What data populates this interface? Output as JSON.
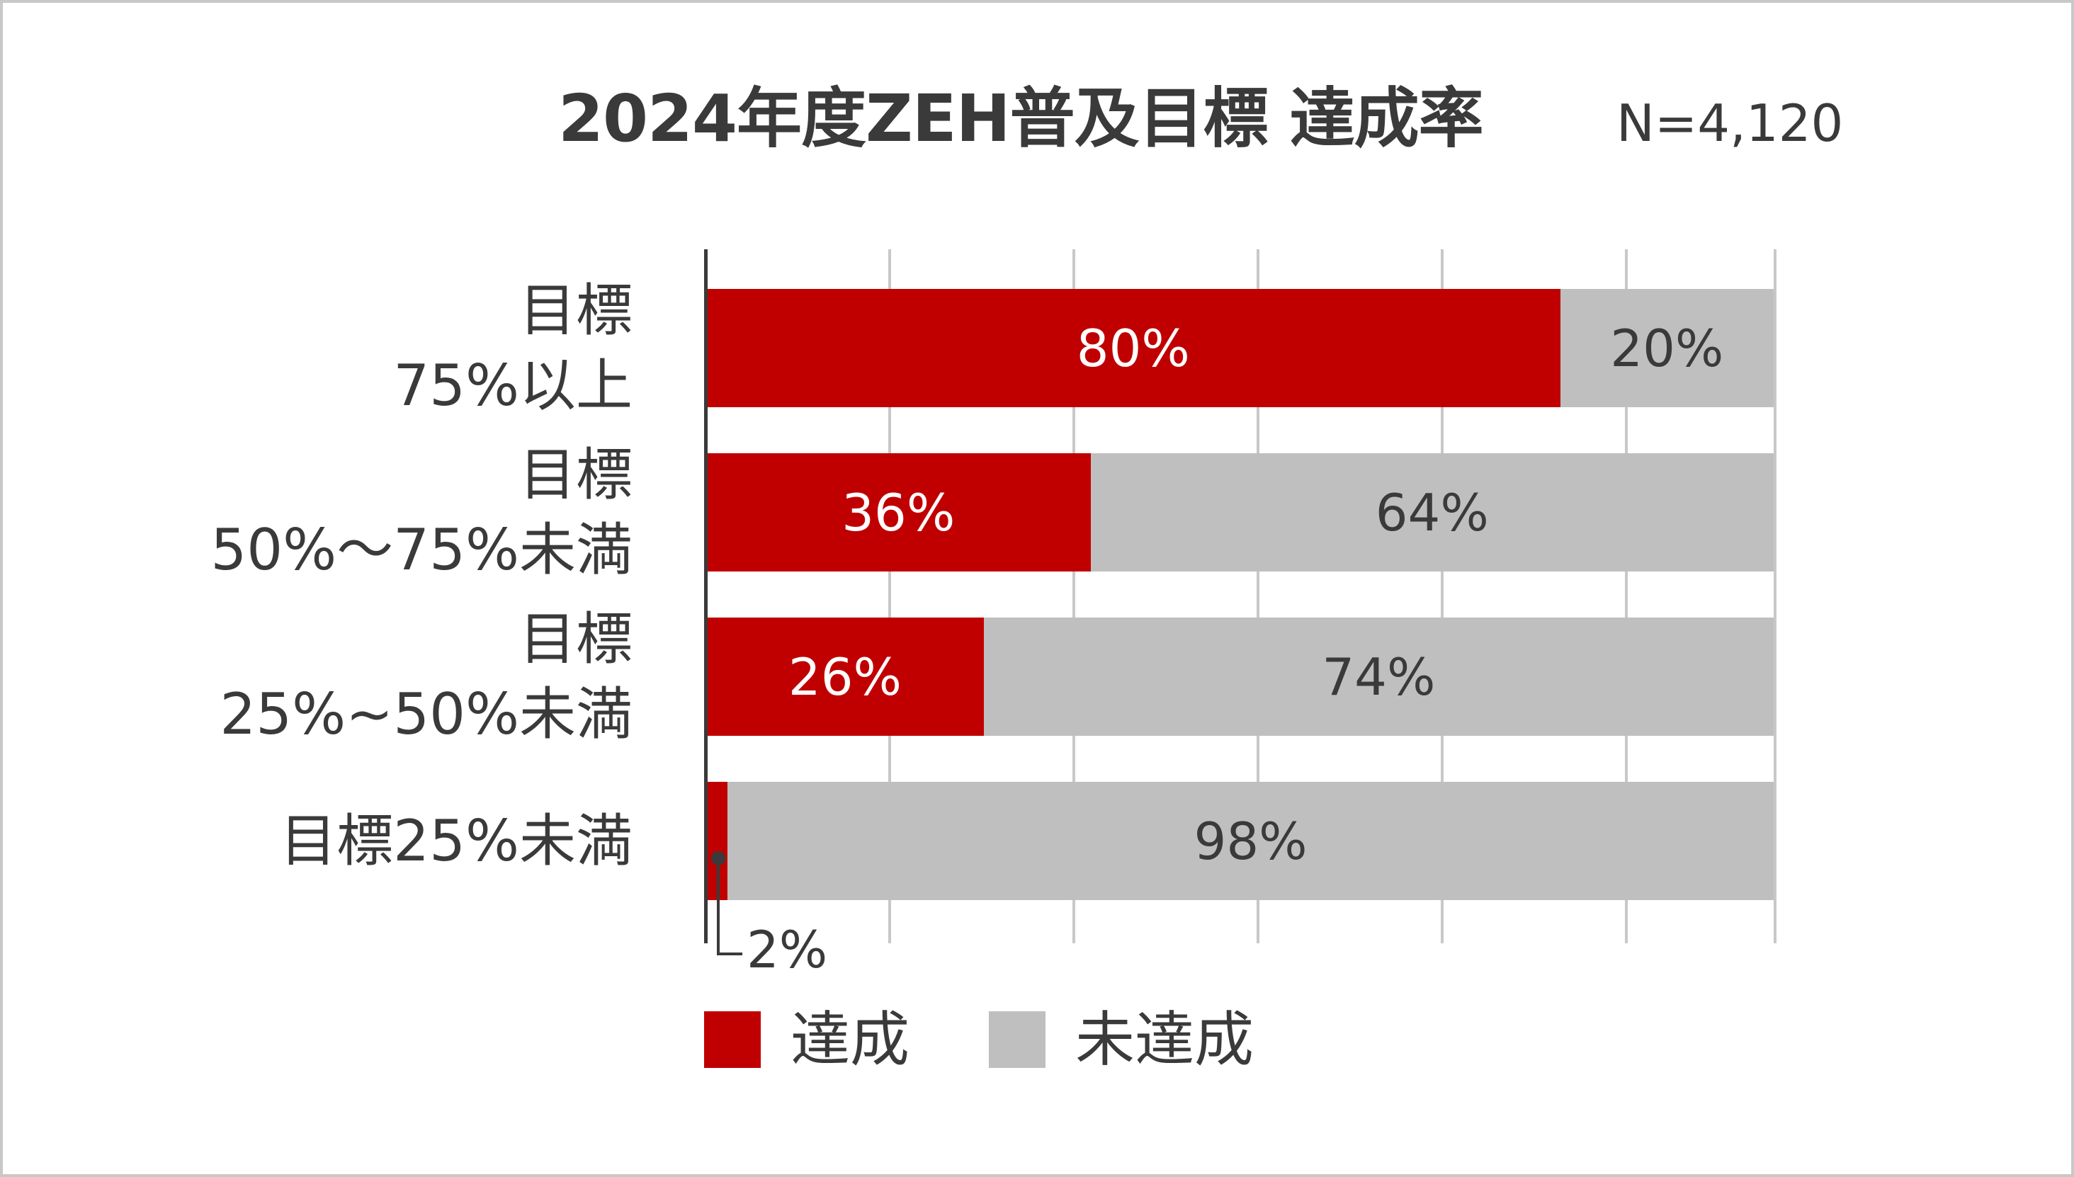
{
  "title": "2024年度ZEH普及目標 達成率",
  "sample_size": "N=4,120",
  "colors": {
    "achieved": "#c00000",
    "not_achieved": "#bfbfbf",
    "text": "#3a3a3a",
    "grid": "#c8c8c8"
  },
  "categories": [
    {
      "line1": "目標",
      "line2": "75%以上",
      "achieved": 80,
      "not_achieved": 20,
      "achieved_label": "80%",
      "not_achieved_label": "20%"
    },
    {
      "line1": "目標",
      "line2": "50%～75%未満",
      "achieved": 36,
      "not_achieved": 64,
      "achieved_label": "36%",
      "not_achieved_label": "64%"
    },
    {
      "line1": "目標",
      "line2": "25%~50%未満",
      "achieved": 26,
      "not_achieved": 74,
      "achieved_label": "26%",
      "not_achieved_label": "74%"
    },
    {
      "line1": "目標25%未満",
      "line2": "",
      "achieved": 2,
      "not_achieved": 98,
      "achieved_label": "",
      "not_achieved_label": "98%"
    }
  ],
  "callout": {
    "label": "2%"
  },
  "legend": [
    {
      "label": "達成",
      "color": "#c00000"
    },
    {
      "label": "未達成",
      "color": "#bfbfbf"
    }
  ],
  "chart_data": {
    "type": "bar",
    "orientation": "horizontal",
    "stacked": true,
    "percent_stacked": true,
    "title": "2024年度ZEH普及目標 達成率",
    "subtitle": "N=4,120",
    "categories": [
      "目標75%以上",
      "目標50%～75%未満",
      "目標25%~50%未満",
      "目標25%未満"
    ],
    "series": [
      {
        "name": "達成",
        "color": "#c00000",
        "values": [
          80,
          36,
          26,
          2
        ]
      },
      {
        "name": "未達成",
        "color": "#bfbfbf",
        "values": [
          20,
          64,
          74,
          98
        ]
      }
    ],
    "xlabel": "",
    "ylabel": "",
    "xlim": [
      0,
      100
    ],
    "grid": true,
    "legend_position": "bottom",
    "annotations": [
      "2% (callout for 目標25%未満 達成)"
    ]
  }
}
